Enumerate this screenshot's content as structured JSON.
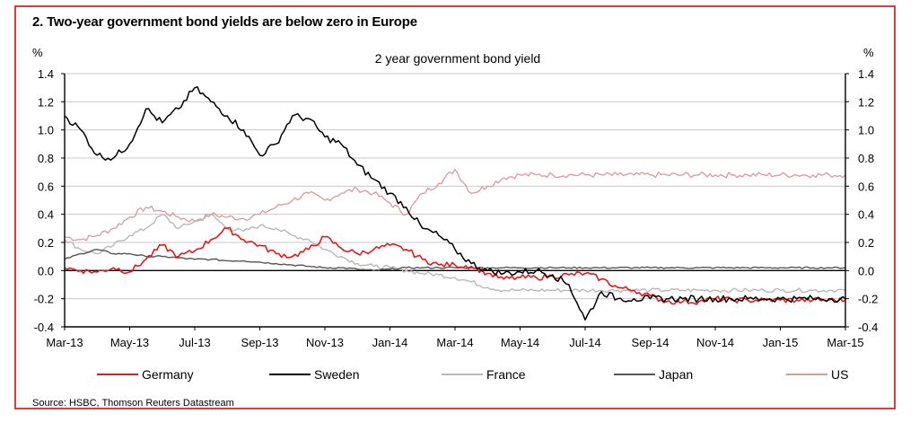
{
  "figure_title": "2. Two-year government bond yields are below zero in Europe",
  "source": "Source: HSBC, Thomson Reuters Datastream",
  "colors": {
    "frame": "#e03a3a",
    "Germany": "#e31a1c",
    "Sweden": "#000000",
    "France": "#b8b8b8",
    "Japan": "#555555",
    "US": "#d99a9a"
  },
  "chart_data": {
    "type": "line",
    "title": "2 year government bond yield",
    "ylabel_left": "%",
    "ylabel_right": "%",
    "ylim": [
      -0.4,
      1.4
    ],
    "yticks": [
      "1.4",
      "1.2",
      "1.0",
      "0.8",
      "0.6",
      "0.4",
      "0.2",
      "0.0",
      "-0.2",
      "-0.4"
    ],
    "ytick_values": [
      1.4,
      1.2,
      1.0,
      0.8,
      0.6,
      0.4,
      0.2,
      0.0,
      -0.2,
      -0.4
    ],
    "xticks": [
      "Mar-13",
      "May-13",
      "Jul-13",
      "Sep-13",
      "Nov-13",
      "Jan-14",
      "Mar-14",
      "May-14",
      "Jul-14",
      "Sep-14",
      "Nov-14",
      "Jan-15",
      "Mar-15"
    ],
    "x": [
      0,
      0.5,
      1,
      1.5,
      2,
      2.5,
      3,
      3.5,
      4,
      4.5,
      5,
      5.5,
      6,
      6.5,
      7,
      7.5,
      8,
      8.5,
      9,
      9.5,
      10,
      10.5,
      11,
      11.5,
      12,
      12.5,
      13,
      13.5,
      14,
      14.5,
      15,
      15.5,
      16,
      16.5,
      17,
      17.5,
      18,
      18.5,
      19,
      19.5,
      20,
      20.5,
      21,
      21.5,
      22,
      22.5,
      23,
      23.5,
      24
    ],
    "grid": true,
    "legend_position": "bottom",
    "series": [
      {
        "name": "Germany",
        "values": [
          0.02,
          0.0,
          -0.01,
          0.02,
          -0.01,
          0.08,
          0.18,
          0.1,
          0.14,
          0.22,
          0.3,
          0.22,
          0.18,
          0.12,
          0.1,
          0.15,
          0.24,
          0.16,
          0.12,
          0.15,
          0.18,
          0.15,
          0.08,
          0.04,
          0.04,
          0.03,
          -0.02,
          -0.06,
          -0.05,
          -0.05,
          -0.04,
          -0.03,
          -0.02,
          -0.06,
          -0.12,
          -0.14,
          -0.18,
          -0.22,
          -0.22,
          -0.22,
          -0.2,
          -0.21,
          -0.21,
          -0.21,
          -0.21,
          -0.21,
          -0.21,
          -0.21,
          -0.21
        ]
      },
      {
        "name": "Sweden",
        "values": [
          1.1,
          1.0,
          0.82,
          0.8,
          0.9,
          1.15,
          1.05,
          1.15,
          1.3,
          1.2,
          1.1,
          1.0,
          0.82,
          0.9,
          1.1,
          1.08,
          0.95,
          0.9,
          0.75,
          0.65,
          0.55,
          0.45,
          0.3,
          0.25,
          0.15,
          0.05,
          0.0,
          -0.02,
          -0.01,
          0.0,
          -0.03,
          -0.1,
          -0.35,
          -0.15,
          -0.2,
          -0.2,
          -0.2,
          -0.2,
          -0.2,
          -0.2,
          -0.2,
          -0.2,
          -0.2,
          -0.2,
          -0.2,
          -0.2,
          -0.2,
          -0.2,
          -0.2
        ]
      },
      {
        "name": "France",
        "values": [
          0.22,
          0.15,
          0.12,
          0.18,
          0.25,
          0.3,
          0.4,
          0.3,
          0.35,
          0.4,
          0.3,
          0.28,
          0.32,
          0.3,
          0.25,
          0.22,
          0.15,
          0.1,
          0.05,
          0.03,
          0.02,
          0.0,
          -0.02,
          -0.03,
          -0.05,
          -0.08,
          -0.12,
          -0.14,
          -0.14,
          -0.14,
          -0.14,
          -0.14,
          -0.14,
          -0.14,
          -0.14,
          -0.14,
          -0.14,
          -0.14,
          -0.14,
          -0.14,
          -0.14,
          -0.14,
          -0.14,
          -0.14,
          -0.14,
          -0.14,
          -0.14,
          -0.14,
          -0.14
        ]
      },
      {
        "name": "Japan",
        "values": [
          0.08,
          0.12,
          0.15,
          0.12,
          0.12,
          0.1,
          0.1,
          0.09,
          0.08,
          0.08,
          0.07,
          0.07,
          0.06,
          0.05,
          0.04,
          0.03,
          0.02,
          0.02,
          0.01,
          0.0,
          0.01,
          0.02,
          0.02,
          0.02,
          0.02,
          0.02,
          0.02,
          0.02,
          0.02,
          0.02,
          0.02,
          0.02,
          0.02,
          0.02,
          0.02,
          0.02,
          0.02,
          0.02,
          0.02,
          0.02,
          0.02,
          0.02,
          0.02,
          0.02,
          0.02,
          0.02,
          0.02,
          0.02,
          0.02
        ]
      },
      {
        "name": "US",
        "values": [
          0.24,
          0.22,
          0.25,
          0.3,
          0.38,
          0.45,
          0.42,
          0.38,
          0.35,
          0.4,
          0.38,
          0.37,
          0.4,
          0.45,
          0.5,
          0.55,
          0.5,
          0.55,
          0.58,
          0.55,
          0.48,
          0.4,
          0.55,
          0.62,
          0.72,
          0.55,
          0.6,
          0.66,
          0.68,
          0.68,
          0.68,
          0.68,
          0.68,
          0.68,
          0.68,
          0.68,
          0.68,
          0.68,
          0.68,
          0.68,
          0.68,
          0.68,
          0.68,
          0.68,
          0.68,
          0.68,
          0.68,
          0.68,
          0.68
        ]
      }
    ]
  }
}
